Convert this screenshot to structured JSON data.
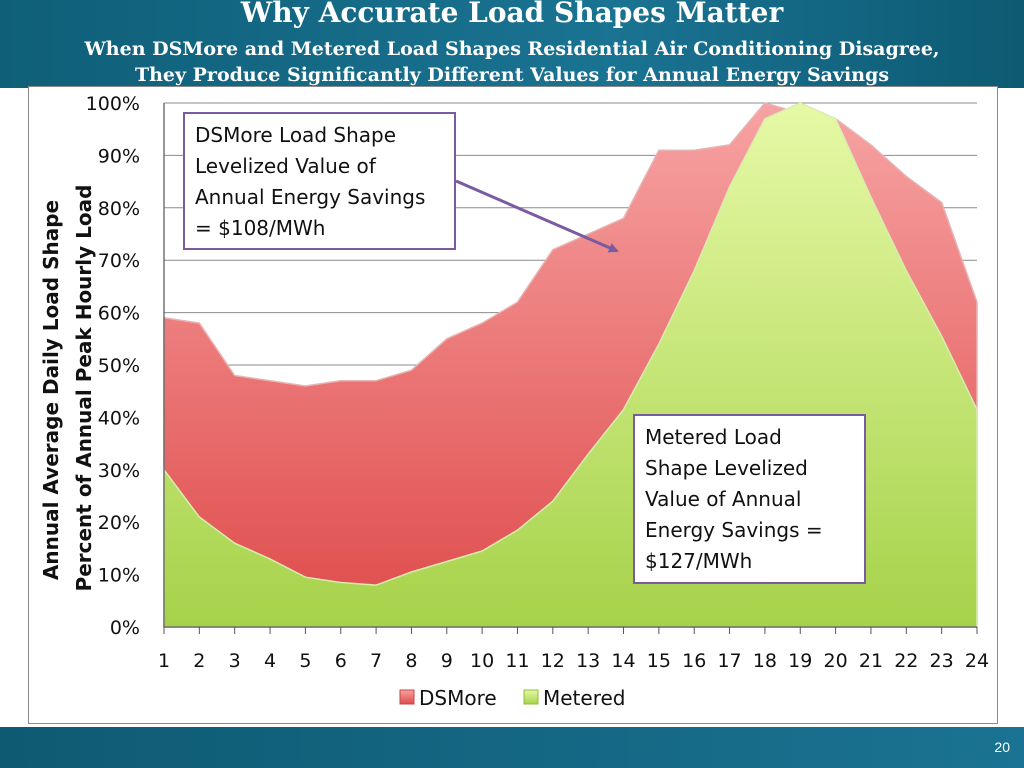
{
  "header": {
    "title": "Why Accurate Load Shapes Matter",
    "subtitle_line1": "When DSMore and Metered Load Shapes Residential Air Conditioning Disagree,",
    "subtitle_line2": "They Produce Significantly Different Values for  Annual Energy Savings"
  },
  "footer": {
    "page_number": "20"
  },
  "callouts": {
    "dsmore": [
      "DSMore Load Shape",
      "Levelized Value of",
      "Annual Energy Savings",
      "= $108/MWh"
    ],
    "metered": [
      "Metered Load",
      "Shape Levelized",
      "Value of Annual",
      "Energy Savings =",
      "$127/MWh"
    ]
  },
  "colors": {
    "dsmore_light": "#f7a3a3",
    "dsmore_dark": "#df4a4a",
    "metered_light": "#e6f9a6",
    "metered_dark": "#a6d24a",
    "arrow": "#7a5aa0"
  },
  "chart_data": {
    "type": "area",
    "ylabel_line1": "Annual Average Daily Load Shape",
    "ylabel_line2": "Percent of Annual Peak  Hourly  Load",
    "xlabel": "",
    "ylim": [
      0,
      1
    ],
    "y_ticks": [
      "0%",
      "10%",
      "20%",
      "30%",
      "40%",
      "50%",
      "60%",
      "70%",
      "80%",
      "90%",
      "100%"
    ],
    "x": [
      1,
      2,
      3,
      4,
      5,
      6,
      7,
      8,
      9,
      10,
      11,
      12,
      13,
      14,
      15,
      16,
      17,
      18,
      19,
      20,
      21,
      22,
      23,
      24
    ],
    "grid": true,
    "legend_position": "bottom",
    "series": [
      {
        "name": "DSMore",
        "values": [
          0.59,
          0.58,
          0.48,
          0.47,
          0.46,
          0.47,
          0.47,
          0.49,
          0.55,
          0.58,
          0.62,
          0.72,
          0.75,
          0.78,
          0.91,
          0.91,
          0.92,
          1.0,
          0.98,
          0.97,
          0.92,
          0.86,
          0.81,
          0.62
        ]
      },
      {
        "name": "Metered",
        "values": [
          0.3,
          0.21,
          0.16,
          0.13,
          0.095,
          0.085,
          0.08,
          0.105,
          0.125,
          0.145,
          0.185,
          0.24,
          0.33,
          0.415,
          0.54,
          0.68,
          0.84,
          0.97,
          1.0,
          0.97,
          0.82,
          0.68,
          0.555,
          0.415
        ]
      }
    ]
  }
}
